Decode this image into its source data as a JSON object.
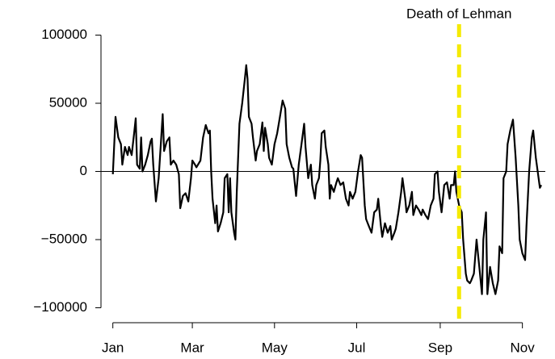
{
  "chart_data": {
    "type": "line",
    "x": [
      0,
      2,
      4,
      6,
      7,
      9,
      11,
      12,
      14,
      16,
      17,
      18,
      20,
      21,
      22,
      24,
      26,
      28,
      29,
      30,
      32,
      34,
      35,
      37,
      38,
      40,
      42,
      43,
      45,
      47,
      49,
      50,
      52,
      54,
      56,
      58,
      59,
      61,
      62,
      65,
      67,
      69,
      71,
      72,
      73,
      74,
      76,
      77,
      78,
      80,
      82,
      83,
      85,
      86,
      87,
      88,
      90,
      91,
      92,
      94,
      96,
      98,
      99,
      100,
      101,
      103,
      104,
      106,
      107,
      109,
      111,
      112,
      113,
      115,
      116,
      118,
      120,
      122,
      124,
      126,
      128,
      129,
      131,
      133,
      134,
      136,
      138,
      140,
      142,
      143,
      145,
      147,
      148,
      150,
      151,
      153,
      154,
      155,
      157,
      158,
      160,
      161,
      162,
      164,
      166,
      167,
      169,
      171,
      173,
      175,
      176,
      178,
      180,
      182,
      184,
      185,
      187,
      188,
      190,
      192,
      194,
      196,
      197,
      199,
      200,
      202,
      204,
      206,
      207,
      209,
      210,
      212,
      214,
      215,
      217,
      218,
      220,
      222,
      223,
      225,
      227,
      229,
      230,
      232,
      234,
      236,
      238,
      239,
      241,
      242,
      244,
      246,
      248,
      250,
      251,
      253,
      254,
      255,
      257,
      259,
      260,
      262,
      263,
      265,
      266,
      268,
      270,
      272,
      274,
      275,
      277,
      278,
      280,
      282,
      284,
      286,
      287,
      289,
      290,
      292,
      293,
      295,
      297,
      299,
      301,
      302,
      304,
      306,
      307,
      309,
      311,
      312,
      314,
      316,
      317,
      318
    ],
    "values": [
      -2000,
      40000,
      25000,
      20000,
      5000,
      18000,
      12000,
      18000,
      12000,
      30000,
      39000,
      5000,
      2000,
      25000,
      0,
      5000,
      12000,
      22000,
      24000,
      5000,
      -22000,
      -5000,
      10000,
      42000,
      15000,
      22000,
      25000,
      5000,
      8000,
      5000,
      -2000,
      -27000,
      -18000,
      -16000,
      -22000,
      -5000,
      8000,
      5000,
      3000,
      8000,
      25000,
      34000,
      28000,
      30000,
      0,
      -20000,
      -38000,
      -25000,
      -44000,
      -38000,
      -30000,
      -5000,
      -2000,
      -30000,
      -5000,
      -30000,
      -45000,
      -50000,
      -15000,
      35000,
      50000,
      68000,
      78000,
      68000,
      40000,
      35000,
      25000,
      8000,
      15000,
      20000,
      36000,
      15000,
      32000,
      20000,
      10000,
      5000,
      20000,
      28000,
      40000,
      52000,
      46000,
      20000,
      10000,
      3000,
      2000,
      -18000,
      5000,
      20000,
      35000,
      18000,
      -5000,
      5000,
      -10000,
      -20000,
      -10000,
      -5000,
      8000,
      28000,
      30000,
      18000,
      5000,
      -20000,
      -10000,
      -15000,
      -8000,
      -5000,
      -10000,
      -8000,
      -20000,
      -25000,
      -15000,
      -20000,
      -15000,
      0,
      12000,
      10000,
      -25000,
      -35000,
      -40000,
      -45000,
      -30000,
      -28000,
      -20000,
      -40000,
      -48000,
      -38000,
      -45000,
      -40000,
      -50000,
      -45000,
      -42000,
      -30000,
      -15000,
      -5000,
      -20000,
      -30000,
      -25000,
      -15000,
      -32000,
      -25000,
      -28000,
      -32000,
      -28000,
      -32000,
      -35000,
      -25000,
      -20000,
      -2000,
      0,
      -15000,
      -30000,
      -10000,
      -8000,
      -20000,
      -10000,
      -10000,
      0,
      -15000,
      -25000,
      -30000,
      -50000,
      -75000,
      -80000,
      -82000,
      -80000,
      -75000,
      -50000,
      -70000,
      -90000,
      -50000,
      -30000,
      -90000,
      -70000,
      -82000,
      -90000,
      -80000,
      -55000,
      -60000,
      -5000,
      0,
      20000,
      30000,
      38000,
      10000,
      -25000,
      -50000,
      -60000,
      -65000,
      -40000,
      0,
      25000,
      30000,
      10000,
      -5000,
      -12000,
      -10000
    ],
    "color": "#000000",
    "xlim": [
      -13,
      321
    ],
    "xticks": [
      {
        "value": 0,
        "label": "Jan"
      },
      {
        "value": 59,
        "label": "Mar"
      },
      {
        "value": 120,
        "label": "May"
      },
      {
        "value": 181,
        "label": "Jul"
      },
      {
        "value": 243,
        "label": "Sep"
      },
      {
        "value": 304,
        "label": "Nov"
      }
    ],
    "ylim": [
      -108000,
      108000
    ],
    "yticks": [
      {
        "value": -100000,
        "label": "−100000"
      },
      {
        "value": -50000,
        "label": "−50000"
      },
      0,
      50000,
      100000
    ],
    "reference_line": 0,
    "annotation": {
      "text": "Death of Lehman",
      "x": 257,
      "color": "#f5ea00"
    }
  }
}
